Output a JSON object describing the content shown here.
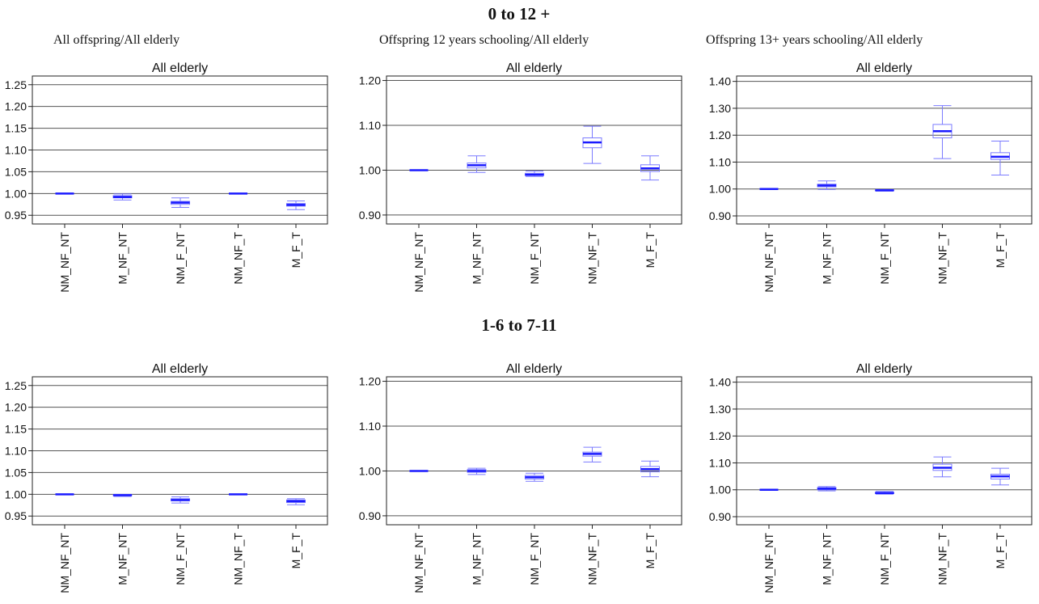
{
  "row_titles": [
    "0 to 12 +",
    "1-6 to 7-11"
  ],
  "column_titles": [
    "All offspring/All elderly",
    "Offspring 12  years schooling/All elderly",
    "Offspring 13+ years schooling/All elderly"
  ],
  "chart_data": [
    {
      "type": "box",
      "row": 0,
      "col": 0,
      "title": "All elderly",
      "categories": [
        "NM_NF_NT",
        "M_NF_NT",
        "NM_F_NT",
        "NM_NF_T",
        "M_F_T"
      ],
      "ylim": [
        0.93,
        1.27
      ],
      "yticks": [
        0.95,
        1.0,
        1.05,
        1.1,
        1.15,
        1.2,
        1.25
      ],
      "ytick_labels": [
        "0.95",
        "1.00",
        "1.05",
        "1.10",
        "1.15",
        "1.20",
        "1.25"
      ],
      "grid": true,
      "boxes": [
        {
          "min": 1.0,
          "q1": 1.0,
          "median": 1.0,
          "q3": 1.0,
          "max": 1.0
        },
        {
          "min": 0.985,
          "q1": 0.99,
          "median": 0.992,
          "q3": 0.995,
          "max": 0.999
        },
        {
          "min": 0.968,
          "q1": 0.975,
          "median": 0.979,
          "q3": 0.982,
          "max": 0.99
        },
        {
          "min": 1.0,
          "q1": 1.0,
          "median": 1.0,
          "q3": 1.0,
          "max": 1.0
        },
        {
          "min": 0.963,
          "q1": 0.971,
          "median": 0.974,
          "q3": 0.977,
          "max": 0.983
        }
      ]
    },
    {
      "type": "box",
      "row": 0,
      "col": 1,
      "title": "All elderly",
      "categories": [
        "NM_NF_NT",
        "M_NF_NT",
        "NM_F_NT",
        "NM_NF_T",
        "M_F_T"
      ],
      "ylim": [
        0.88,
        1.21
      ],
      "yticks": [
        0.9,
        1.0,
        1.1,
        1.2
      ],
      "ytick_labels": [
        "0.90",
        "1.00",
        "1.10",
        "1.20"
      ],
      "grid": true,
      "boxes": [
        {
          "min": 1.0,
          "q1": 1.0,
          "median": 1.0,
          "q3": 1.0,
          "max": 1.0
        },
        {
          "min": 0.995,
          "q1": 1.005,
          "median": 1.011,
          "q3": 1.016,
          "max": 1.032
        },
        {
          "min": 0.986,
          "q1": 0.988,
          "median": 0.99,
          "q3": 0.993,
          "max": 0.998
        },
        {
          "min": 1.015,
          "q1": 1.05,
          "median": 1.062,
          "q3": 1.072,
          "max": 1.098
        },
        {
          "min": 0.978,
          "q1": 0.997,
          "median": 1.004,
          "q3": 1.012,
          "max": 1.032
        }
      ]
    },
    {
      "type": "box",
      "row": 0,
      "col": 2,
      "title": "All elderly",
      "categories": [
        "NM_NF_NT",
        "M_NF_NT",
        "NM_F_NT",
        "NM_NF_T",
        "M_F_T"
      ],
      "ylim": [
        0.87,
        1.42
      ],
      "yticks": [
        0.9,
        1.0,
        1.1,
        1.2,
        1.3,
        1.4
      ],
      "ytick_labels": [
        "0.90",
        "1.00",
        "1.10",
        "1.20",
        "1.30",
        "1.40"
      ],
      "grid": true,
      "boxes": [
        {
          "min": 1.0,
          "q1": 1.0,
          "median": 1.0,
          "q3": 1.0,
          "max": 1.0
        },
        {
          "min": 0.998,
          "q1": 1.008,
          "median": 1.013,
          "q3": 1.018,
          "max": 1.03
        },
        {
          "min": 0.992,
          "q1": 0.994,
          "median": 0.995,
          "q3": 0.996,
          "max": 0.998
        },
        {
          "min": 1.113,
          "q1": 1.19,
          "median": 1.215,
          "q3": 1.24,
          "max": 1.31
        },
        {
          "min": 1.052,
          "q1": 1.11,
          "median": 1.12,
          "q3": 1.135,
          "max": 1.178
        }
      ]
    },
    {
      "type": "box",
      "row": 1,
      "col": 0,
      "title": "All elderly",
      "categories": [
        "NM_NF_NT",
        "M_NF_NT",
        "NM_F_NT",
        "NM_NF_T",
        "M_F_T"
      ],
      "ylim": [
        0.93,
        1.27
      ],
      "yticks": [
        0.95,
        1.0,
        1.05,
        1.1,
        1.15,
        1.2,
        1.25
      ],
      "ytick_labels": [
        "0.95",
        "1.00",
        "1.05",
        "1.10",
        "1.15",
        "1.20",
        "1.25"
      ],
      "grid": true,
      "boxes": [
        {
          "min": 1.0,
          "q1": 1.0,
          "median": 1.0,
          "q3": 1.0,
          "max": 1.0
        },
        {
          "min": 0.995,
          "q1": 0.997,
          "median": 0.998,
          "q3": 0.999,
          "max": 1.0
        },
        {
          "min": 0.98,
          "q1": 0.985,
          "median": 0.987,
          "q3": 0.99,
          "max": 0.994
        },
        {
          "min": 1.0,
          "q1": 1.0,
          "median": 1.0,
          "q3": 1.0,
          "max": 1.0
        },
        {
          "min": 0.976,
          "q1": 0.981,
          "median": 0.984,
          "q3": 0.987,
          "max": 0.99
        }
      ]
    },
    {
      "type": "box",
      "row": 1,
      "col": 1,
      "title": "All elderly",
      "categories": [
        "NM_NF_NT",
        "M_NF_NT",
        "NM_F_NT",
        "NM_NF_T",
        "M_F_T"
      ],
      "ylim": [
        0.88,
        1.21
      ],
      "yticks": [
        0.9,
        1.0,
        1.1,
        1.2
      ],
      "ytick_labels": [
        "0.90",
        "1.00",
        "1.10",
        "1.20"
      ],
      "grid": true,
      "boxes": [
        {
          "min": 1.0,
          "q1": 1.0,
          "median": 1.0,
          "q3": 1.0,
          "max": 1.0
        },
        {
          "min": 0.992,
          "q1": 0.997,
          "median": 1.0,
          "q3": 1.003,
          "max": 1.006
        },
        {
          "min": 0.977,
          "q1": 0.982,
          "median": 0.986,
          "q3": 0.99,
          "max": 0.995
        },
        {
          "min": 1.02,
          "q1": 1.033,
          "median": 1.038,
          "q3": 1.042,
          "max": 1.053
        },
        {
          "min": 0.987,
          "q1": 0.998,
          "median": 1.004,
          "q3": 1.01,
          "max": 1.022
        }
      ]
    },
    {
      "type": "box",
      "row": 1,
      "col": 2,
      "title": "All elderly",
      "categories": [
        "NM_NF_NT",
        "M_NF_NT",
        "NM_F_NT",
        "NM_NF_T",
        "M_F_T"
      ],
      "ylim": [
        0.87,
        1.42
      ],
      "yticks": [
        0.9,
        1.0,
        1.1,
        1.2,
        1.3,
        1.4
      ],
      "ytick_labels": [
        "0.90",
        "1.00",
        "1.10",
        "1.20",
        "1.30",
        "1.40"
      ],
      "grid": true,
      "boxes": [
        {
          "min": 1.0,
          "q1": 1.0,
          "median": 1.0,
          "q3": 1.0,
          "max": 1.0
        },
        {
          "min": 0.996,
          "q1": 1.0,
          "median": 1.004,
          "q3": 1.008,
          "max": 1.012
        },
        {
          "min": 0.984,
          "q1": 0.986,
          "median": 0.988,
          "q3": 0.991,
          "max": 0.994
        },
        {
          "min": 1.048,
          "q1": 1.072,
          "median": 1.082,
          "q3": 1.095,
          "max": 1.122
        },
        {
          "min": 1.018,
          "q1": 1.04,
          "median": 1.05,
          "q3": 1.058,
          "max": 1.08
        }
      ]
    }
  ],
  "colors": {
    "box_stroke": "#7b7bff",
    "median": "#1a1aff",
    "axis": "#222222",
    "grid": "#555555",
    "text": "#111111"
  }
}
